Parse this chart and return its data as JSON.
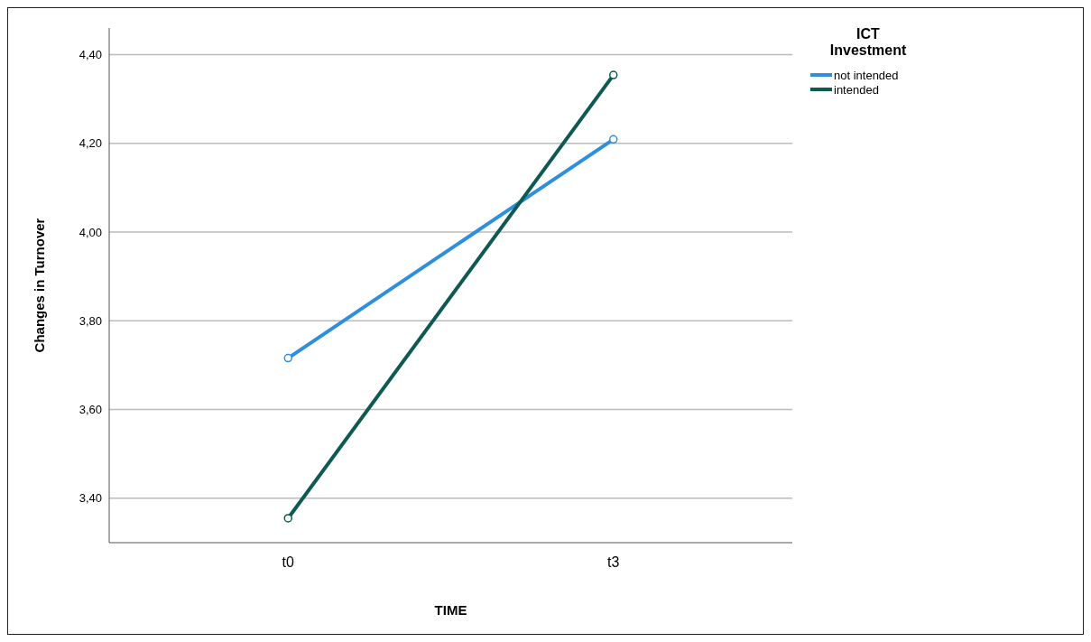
{
  "chart_data": {
    "type": "line",
    "xlabel": "TIME",
    "ylabel": "Changes in Turnover",
    "legend_title": "ICT Investment",
    "categories": [
      "t0",
      "t3"
    ],
    "series": [
      {
        "name": "not intended",
        "color": "#2e8fdc",
        "values": [
          3.716,
          4.209
        ]
      },
      {
        "name": "intended",
        "color": "#0e5a52",
        "values": [
          3.355,
          4.354
        ]
      }
    ],
    "ylim": [
      3.3,
      4.46
    ],
    "yticks": [
      {
        "value": 3.4,
        "label": "3,40"
      },
      {
        "value": 3.6,
        "label": "3,60"
      },
      {
        "value": 3.8,
        "label": "3,80"
      },
      {
        "value": 4.0,
        "label": "4,00"
      },
      {
        "value": 4.2,
        "label": "4,20"
      },
      {
        "value": 4.4,
        "label": "4,40"
      }
    ],
    "grid": "y",
    "legend": "top right",
    "marker": "circle",
    "line_style": "solid"
  }
}
